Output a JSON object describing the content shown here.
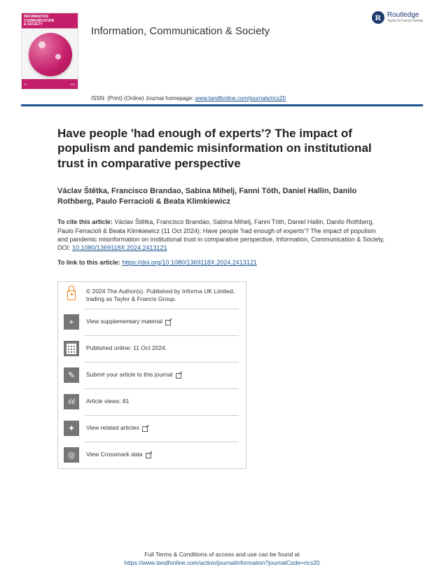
{
  "publisher": {
    "name": "Routledge",
    "tagline": "Taylor & Francis Group"
  },
  "journal": {
    "name": "Information, Communication & Society",
    "cover_label_1": "INFORMATION",
    "cover_label_2": "COMMUNICATION",
    "cover_label_3": "& SOCIETY",
    "issn_prefix": "ISSN: (Print) (Online) Journal homepage: ",
    "homepage_url": "www.tandfonline.com/journals/rics20"
  },
  "article": {
    "title": "Have people 'had enough of experts'? The impact of populism and pandemic misinformation on institutional trust in comparative perspective",
    "authors": "Václav Štětka, Francisco Brandao, Sabina Mihelj, Fanni Tóth, Daniel Hallin, Danilo Rothberg, Paulo Ferracioli & Beata Klimkiewicz",
    "cite_label": "To cite this article: ",
    "cite_text": "Václav Štětka, Francisco Brandao, Sabina Mihelj, Fanni Tóth, Daniel Hallin, Danilo Rothberg, Paulo Ferracioli & Beata Klimkiewicz (11 Oct 2024): Have people 'had enough of experts'? The impact of populism and pandemic misinformation on institutional trust in comparative perspective, Information, Communication & Society, DOI: ",
    "doi_short": "10.1080/1369118X.2024.2413121",
    "link_label": "To link to this article:  ",
    "doi_url": "https://doi.org/10.1080/1369118X.2024.2413121"
  },
  "info": {
    "copyright": "© 2024 The Author(s). Published by Informa UK Limited, trading as Taylor & Francis Group.",
    "supplementary": "View supplementary material",
    "published": "Published online: 11 Oct 2024.",
    "submit": "Submit your article to this journal",
    "views_label": "Article views: ",
    "views_count": "81",
    "related": "View related articles",
    "crossmark": "View Crossmark data"
  },
  "footer": {
    "line1": "Full Terms & Conditions of access and use can be found at",
    "line2": "https://www.tandfonline.com/action/journalInformation?journalCode=rics20"
  },
  "colors": {
    "brand_magenta": "#c41e6a",
    "rule_blue": "#1a5490",
    "open_access_orange": "#f68212",
    "icon_gray": "#767676",
    "publisher_navy": "#1a3a6e"
  }
}
